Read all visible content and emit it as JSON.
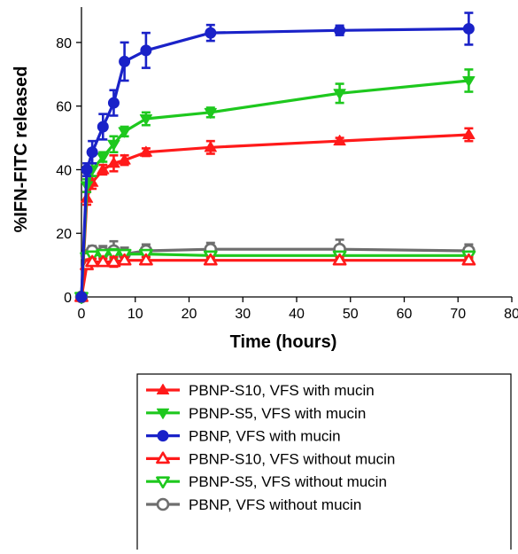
{
  "chart_data": {
    "type": "line",
    "title": "",
    "xlabel": "Time (hours)",
    "ylabel": "%IFN-FITC released",
    "xlim": [
      0,
      80
    ],
    "ylim": [
      0,
      90
    ],
    "xticks": [
      0,
      10,
      20,
      30,
      40,
      50,
      60,
      70,
      80
    ],
    "yticks": [
      0,
      20,
      40,
      60,
      80
    ],
    "grid": false,
    "legend_position": "bottom",
    "series": [
      {
        "name": "PBNP-S10, VFS with mucin",
        "color": "#ff1a1a",
        "marker": "triangle-up",
        "filled": true,
        "x": [
          0,
          1,
          2,
          4,
          6,
          8,
          12,
          24,
          48,
          72
        ],
        "y": [
          0,
          31,
          36,
          40,
          42,
          43,
          45.5,
          47,
          49,
          51
        ],
        "err": [
          0.5,
          2,
          2,
          1.5,
          2.5,
          1.5,
          1.2,
          2,
          1,
          2
        ]
      },
      {
        "name": "PBNP-S5, VFS with mucin",
        "color": "#1ec81e",
        "marker": "triangle-down",
        "filled": true,
        "x": [
          0,
          1,
          2,
          4,
          6,
          8,
          12,
          24,
          48,
          72
        ],
        "y": [
          0,
          35,
          40,
          44,
          48,
          52,
          56,
          58,
          64,
          68
        ],
        "err": [
          0.5,
          2,
          2,
          1.5,
          2.5,
          1.5,
          2,
          1.5,
          3,
          3.5
        ]
      },
      {
        "name": "PBNP, VFS with mucin",
        "color": "#1a22c8",
        "marker": "circle",
        "filled": true,
        "x": [
          0,
          1,
          2,
          4,
          6,
          8,
          12,
          24,
          48,
          72
        ],
        "y": [
          0,
          40,
          45.5,
          53.5,
          61,
          74,
          77.5,
          83,
          83.8,
          84.3
        ],
        "err": [
          0.5,
          2,
          3.5,
          4,
          4,
          6,
          5.5,
          2.5,
          1.5,
          5
        ]
      },
      {
        "name": "PBNP-S10, VFS without mucin",
        "color": "#ff1a1a",
        "marker": "triangle-up",
        "filled": false,
        "x": [
          0,
          1,
          2,
          4,
          6,
          8,
          12,
          24,
          48,
          72
        ],
        "y": [
          0,
          10,
          11,
          11,
          11,
          11.5,
          11.5,
          11.5,
          11.5,
          11.5
        ],
        "err": [
          0.5,
          1,
          1,
          1,
          1.5,
          1,
          1,
          1,
          1,
          1
        ]
      },
      {
        "name": "PBNP-S5, VFS without mucin",
        "color": "#1ec81e",
        "marker": "triangle-down",
        "filled": false,
        "x": [
          0,
          1,
          2,
          4,
          6,
          8,
          12,
          24,
          48,
          72
        ],
        "y": [
          0,
          12.5,
          13,
          13.5,
          13.5,
          13.5,
          13.5,
          13,
          13,
          13
        ],
        "err": [
          0.5,
          1,
          1,
          1,
          1.5,
          1,
          1,
          1,
          1,
          1
        ]
      },
      {
        "name": "PBNP, VFS without mucin",
        "color": "#6e6e6e",
        "marker": "circle",
        "filled": false,
        "x": [
          0,
          1,
          2,
          4,
          6,
          8,
          12,
          24,
          48,
          72
        ],
        "y": [
          0,
          13,
          14.5,
          14,
          14.5,
          13.5,
          14.5,
          15,
          15,
          14.5
        ],
        "err": [
          0.5,
          1.5,
          1.5,
          2,
          3,
          2,
          2,
          2,
          3,
          2
        ]
      }
    ]
  }
}
